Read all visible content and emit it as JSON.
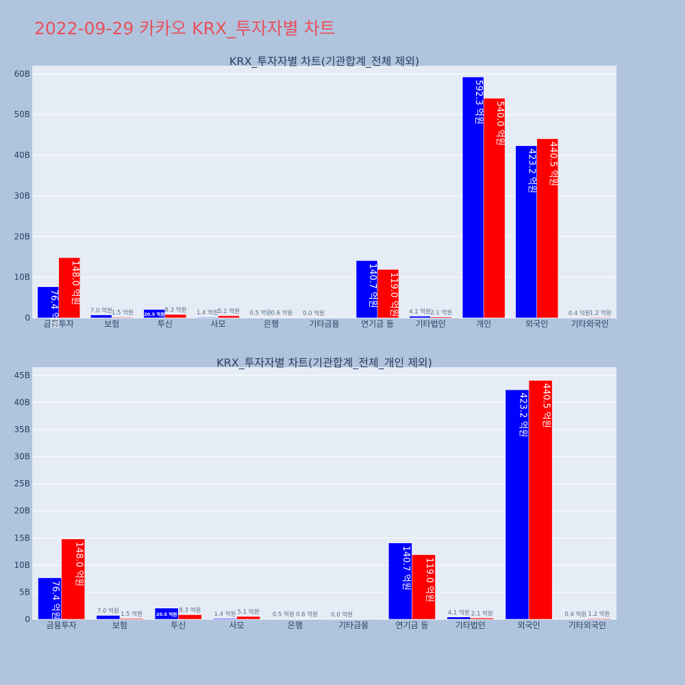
{
  "title": "2022-09-29 카카오 KRX_투자자별 차트",
  "colors": {
    "background": "#b0c4de",
    "plot_bg": "#e5ecf6",
    "buy": "#0000ff",
    "sell": "#ff0000",
    "title": "#e8505b"
  },
  "chart_data": [
    {
      "type": "bar",
      "title": "KRX_투자자별 차트(기관합계_전체 제외)",
      "categories": [
        "금융투자",
        "보험",
        "투신",
        "사모",
        "은행",
        "기타금융",
        "연기금 등",
        "기타법인",
        "개인",
        "외국인",
        "기타외국인"
      ],
      "ylim": [
        0,
        62
      ],
      "yticks": [
        0,
        10,
        20,
        30,
        40,
        50,
        60
      ],
      "ytick_labels": [
        "0",
        "10B",
        "20B",
        "30B",
        "40B",
        "50B",
        "60B"
      ],
      "series": [
        {
          "color": "#0000ff",
          "values": [
            7.64,
            0.7,
            2.05,
            0.14,
            0.05,
            0.0,
            14.07,
            0.41,
            59.23,
            42.32,
            0.04
          ],
          "labels": [
            "76.4 억원",
            "7.0 억원",
            "20.5 억원",
            "1.4 억원",
            "0.5 억원",
            "0.0 억원",
            "140.7 억원",
            "4.1 억원",
            "592.3 억원",
            "423.2 억원",
            "0.4 억원"
          ]
        },
        {
          "color": "#ff0000",
          "values": [
            14.8,
            0.15,
            0.83,
            0.51,
            0.06,
            null,
            11.9,
            0.21,
            54.0,
            44.05,
            0.12
          ],
          "labels": [
            "148.0 억원",
            "1.5 억원",
            "8.3 억원",
            "5.1 억원",
            "0.6 억원",
            null,
            "119.0 억원",
            "2.1 억원",
            "540.0 억원",
            "440.5 억원",
            "1.2 억원"
          ]
        }
      ]
    },
    {
      "type": "bar",
      "title": "KRX_투자자별 차트(기관합계_전체_개인 제외)",
      "categories": [
        "금융투자",
        "보험",
        "투신",
        "사모",
        "은행",
        "기타금융",
        "연기금 등",
        "기타법인",
        "외국인",
        "기타외국인"
      ],
      "ylim": [
        0,
        46.5
      ],
      "yticks": [
        0,
        5,
        10,
        15,
        20,
        25,
        30,
        35,
        40,
        45
      ],
      "ytick_labels": [
        "0",
        "5B",
        "10B",
        "15B",
        "20B",
        "25B",
        "30B",
        "35B",
        "40B",
        "45B"
      ],
      "series": [
        {
          "color": "#0000ff",
          "values": [
            7.64,
            0.7,
            2.05,
            0.14,
            0.05,
            0.0,
            14.07,
            0.41,
            42.32,
            0.04
          ],
          "labels": [
            "76.4 억원",
            "7.0 억원",
            "20.5 억원",
            "1.4 억원",
            "0.5 억원",
            "0.0 억원",
            "140.7 억원",
            "4.1 억원",
            "423.2 억원",
            "0.4 억원"
          ]
        },
        {
          "color": "#ff0000",
          "values": [
            14.8,
            0.15,
            0.83,
            0.51,
            0.06,
            null,
            11.9,
            0.21,
            44.05,
            0.12
          ],
          "labels": [
            "148.0 억원",
            "1.5 억원",
            "8.3 억원",
            "5.1 억원",
            "0.6 억원",
            null,
            "119.0 억원",
            "2.1 억원",
            "440.5 억원",
            "1.2 억원"
          ]
        }
      ]
    }
  ]
}
